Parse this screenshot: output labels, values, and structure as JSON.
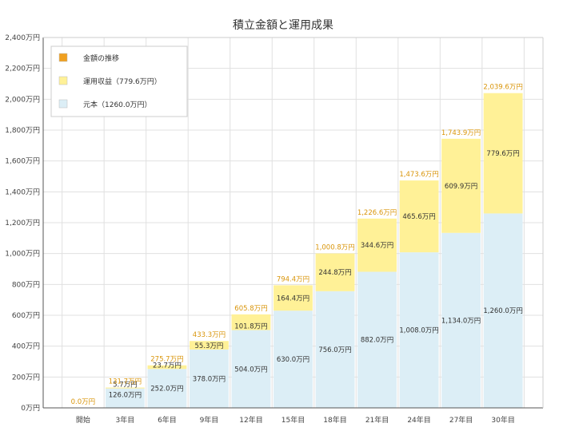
{
  "chart_data": {
    "type": "bar",
    "title": "積立金額と運用成果",
    "categories": [
      "開始",
      "3年目",
      "6年目",
      "9年目",
      "12年目",
      "15年目",
      "18年目",
      "21年目",
      "24年目",
      "27年目",
      "30年目"
    ],
    "series": [
      {
        "name": "元本（1260.0万円）",
        "color": "#dceef6",
        "values": [
          0,
          126.0,
          252.0,
          378.0,
          504.0,
          630.0,
          756.0,
          882.0,
          1008.0,
          1134.0,
          1260.0
        ],
        "labels": [
          "",
          "126.0万円",
          "252.0万円",
          "378.0万円",
          "504.0万円",
          "630.0万円",
          "756.0万円",
          "882.0万円",
          "1,008.0万円",
          "1,134.0万円",
          "1,260.0万円"
        ]
      },
      {
        "name": "運用収益（779.6万円）",
        "color": "#fff197",
        "values": [
          0,
          5.7,
          23.7,
          55.3,
          101.8,
          164.4,
          244.8,
          344.6,
          465.6,
          609.9,
          779.6
        ],
        "labels": [
          "",
          "5.7万円",
          "23.7万円",
          "55.3万円",
          "101.8万円",
          "164.4万円",
          "244.8万円",
          "344.6万円",
          "465.6万円",
          "609.9万円",
          "779.6万円"
        ]
      }
    ],
    "totals": {
      "name": "金額の推移",
      "color": "#f0a020",
      "values": [
        0.0,
        131.7,
        275.7,
        433.3,
        605.8,
        794.4,
        1000.8,
        1226.6,
        1473.6,
        1743.9,
        2039.6
      ],
      "labels": [
        "0.0万円",
        "131.7万円",
        "275.7万円",
        "433.3万円",
        "605.8万円",
        "794.4万円",
        "1,000.8万円",
        "1,226.6万円",
        "1,473.6万円",
        "1,743.9万円",
        "2,039.6万円"
      ]
    },
    "ylim": [
      0,
      2400
    ],
    "yticks": [
      0,
      200,
      400,
      600,
      800,
      1000,
      1200,
      1400,
      1600,
      1800,
      2000,
      2200,
      2400
    ],
    "ytick_labels": [
      "0万円",
      "200万円",
      "400万円",
      "600万円",
      "800万円",
      "1,000万円",
      "1,200万円",
      "1,400万円",
      "1,600万円",
      "1,800万円",
      "2,000万円",
      "2,200万円",
      "2,400万円"
    ],
    "grid": true,
    "legend_position": "top-left",
    "legend_order": [
      "金額の推移",
      "運用収益（779.6万円）",
      "元本（1260.0万円）"
    ],
    "colors": {
      "grid": "#e0e0e0",
      "axis": "#555555",
      "total_label": "#d9950a"
    }
  }
}
